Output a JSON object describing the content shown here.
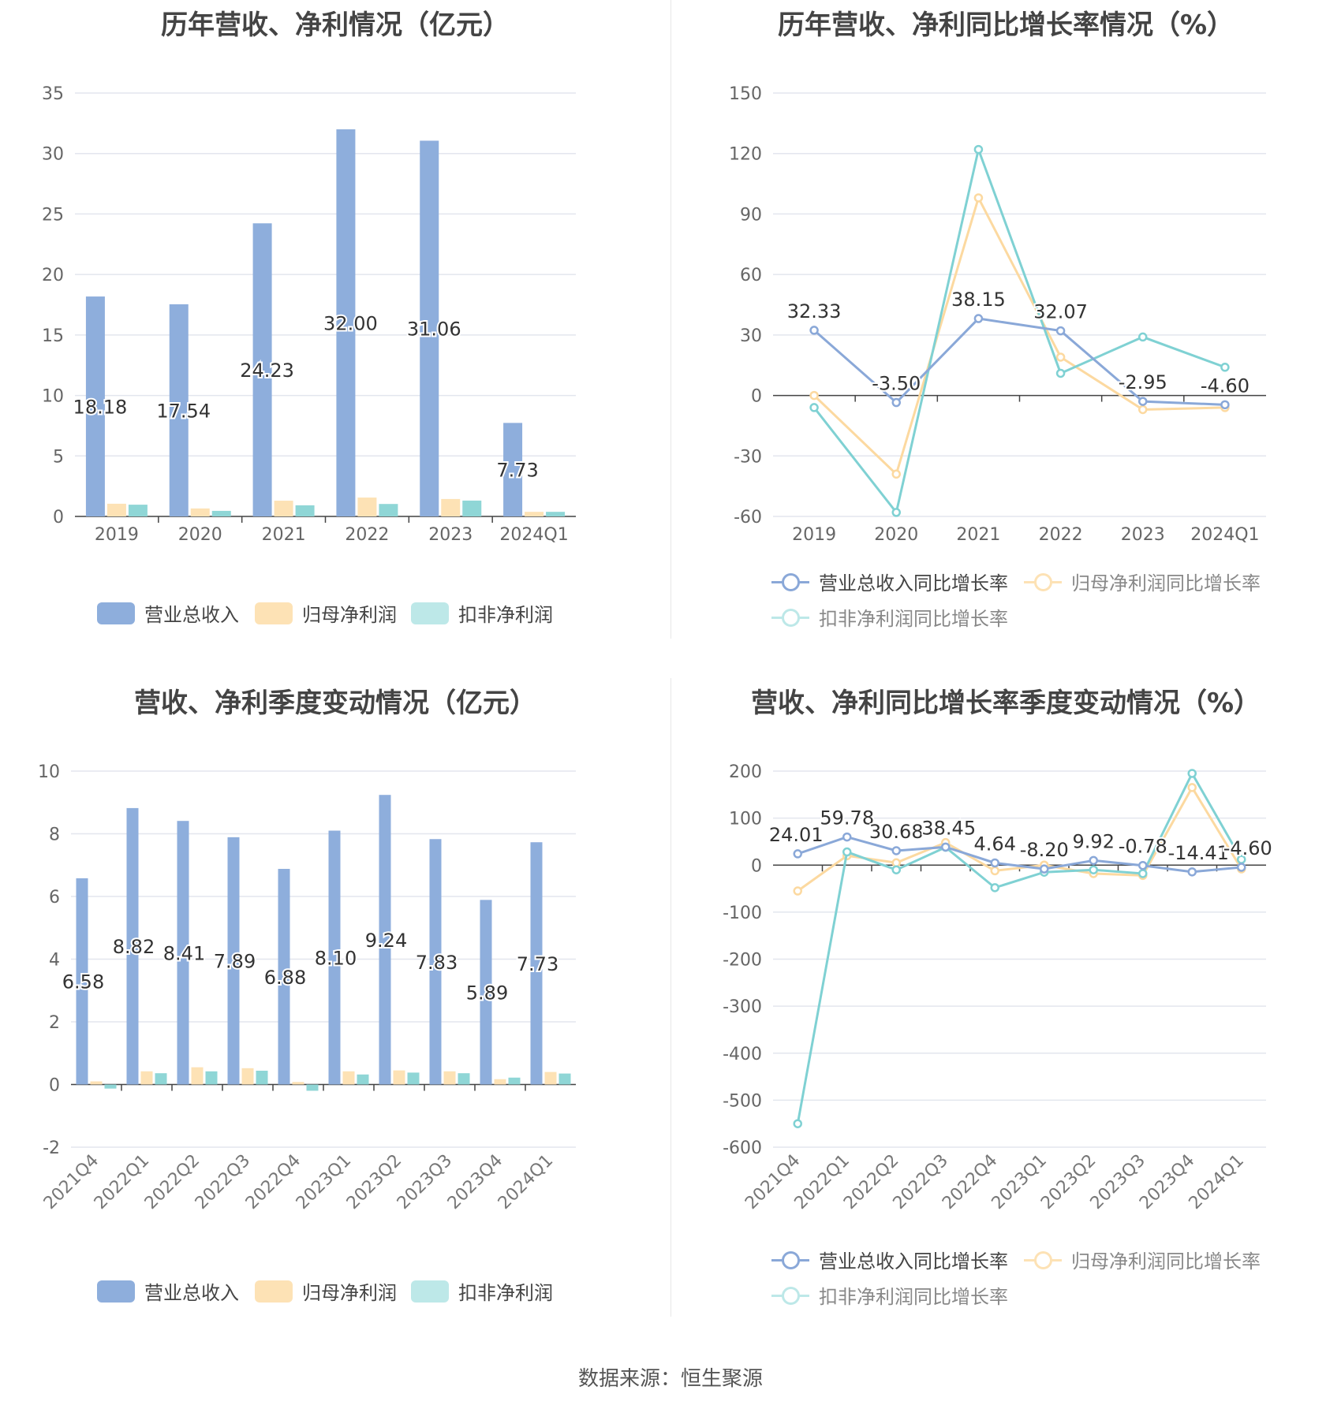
{
  "source": "数据来源：恒生聚源",
  "colors": {
    "revenue": "#8eaedc",
    "net": "#fde2b5",
    "deduct": "#8fd6d6",
    "revenue_line": "#8aa8d8",
    "net_line": "#fcd9a0",
    "deduct_line": "#7fd1d3"
  },
  "chart_data": [
    {
      "id": "c1",
      "type": "bar",
      "title": "历年营收、净利情况（亿元）",
      "categories": [
        "2019",
        "2020",
        "2021",
        "2022",
        "2023",
        "2024Q1"
      ],
      "ylim": [
        0,
        35
      ],
      "yticks": [
        0,
        5,
        10,
        15,
        20,
        25,
        30,
        35
      ],
      "series": [
        {
          "name": "营业总收入",
          "values": [
            18.18,
            17.54,
            24.23,
            32.0,
            31.06,
            7.73
          ],
          "labels": [
            "18.18",
            "17.54",
            "24.23",
            "32.00",
            "31.06",
            "7.73"
          ]
        },
        {
          "name": "归母净利润",
          "values": [
            1.05,
            0.66,
            1.3,
            1.56,
            1.44,
            0.38
          ]
        },
        {
          "name": "扣非净利润",
          "values": [
            0.97,
            0.46,
            0.92,
            1.03,
            1.31,
            0.38
          ]
        }
      ],
      "legend": "bottom"
    },
    {
      "id": "c2",
      "type": "line",
      "title": "历年营收、净利同比增长率情况（%）",
      "categories": [
        "2019",
        "2020",
        "2021",
        "2022",
        "2023",
        "2024Q1"
      ],
      "ylim": [
        -60,
        150
      ],
      "yticks": [
        -60,
        -30,
        0,
        30,
        60,
        90,
        120,
        150
      ],
      "series": [
        {
          "name": "营业总收入同比增长率",
          "values": [
            32.33,
            -3.5,
            38.15,
            32.07,
            -2.95,
            -4.6
          ],
          "labels": [
            "32.33",
            "-3.50",
            "38.15",
            "32.07",
            "-2.95",
            "-4.60"
          ]
        },
        {
          "name": "归母净利润同比增长率",
          "values": [
            0,
            -39,
            98,
            19,
            -7,
            -6
          ]
        },
        {
          "name": "扣非净利润同比增长率",
          "values": [
            -6,
            -58,
            122,
            11,
            29,
            14
          ]
        }
      ],
      "legend": "bottom"
    },
    {
      "id": "c3",
      "type": "bar",
      "title": "营收、净利季度变动情况（亿元）",
      "categories": [
        "2021Q4",
        "2022Q1",
        "2022Q2",
        "2022Q3",
        "2022Q4",
        "2023Q1",
        "2023Q2",
        "2023Q3",
        "2023Q4",
        "2024Q1"
      ],
      "ylim": [
        -2,
        10
      ],
      "yticks": [
        -2,
        0,
        2,
        4,
        6,
        8,
        10
      ],
      "series": [
        {
          "name": "营业总收入",
          "values": [
            6.58,
            8.82,
            8.41,
            7.89,
            6.88,
            8.1,
            9.24,
            7.83,
            5.89,
            7.73
          ],
          "labels": [
            "6.58",
            "8.82",
            "8.41",
            "7.89",
            "6.88",
            "8.10",
            "9.24",
            "7.83",
            "5.89",
            "7.73"
          ]
        },
        {
          "name": "归母净利润",
          "values": [
            0.1,
            0.42,
            0.55,
            0.52,
            0.08,
            0.42,
            0.45,
            0.42,
            0.17,
            0.4
          ]
        },
        {
          "name": "扣非净利润",
          "values": [
            -0.13,
            0.36,
            0.42,
            0.44,
            -0.2,
            0.32,
            0.38,
            0.36,
            0.22,
            0.35
          ]
        }
      ],
      "legend": "bottom"
    },
    {
      "id": "c4",
      "type": "line",
      "title": "营收、净利同比增长率季度变动情况（%）",
      "categories": [
        "2021Q4",
        "2022Q1",
        "2022Q2",
        "2022Q3",
        "2022Q4",
        "2023Q1",
        "2023Q2",
        "2023Q3",
        "2023Q4",
        "2024Q1"
      ],
      "ylim": [
        -600,
        200
      ],
      "yticks": [
        -600,
        -500,
        -400,
        -300,
        -200,
        -100,
        0,
        100,
        200
      ],
      "series": [
        {
          "name": "营业总收入同比增长率",
          "values": [
            24.01,
            59.78,
            30.68,
            38.45,
            4.64,
            -8.2,
            9.92,
            -0.78,
            -14.41,
            -4.6
          ],
          "labels": [
            "24.01",
            "59.78",
            "30.68",
            "38.45",
            "4.64",
            "-8.20",
            "9.92",
            "-0.78",
            "-14.41",
            "-4.60"
          ]
        },
        {
          "name": "归母净利润同比增长率",
          "values": [
            -55,
            20,
            5,
            48,
            -12,
            0,
            -18,
            -22,
            165,
            -8
          ]
        },
        {
          "name": "扣非净利润同比增长率",
          "values": [
            -550,
            28,
            -10,
            38,
            -48,
            -15,
            -10,
            -18,
            195,
            12
          ]
        }
      ],
      "legend": "bottom"
    }
  ]
}
